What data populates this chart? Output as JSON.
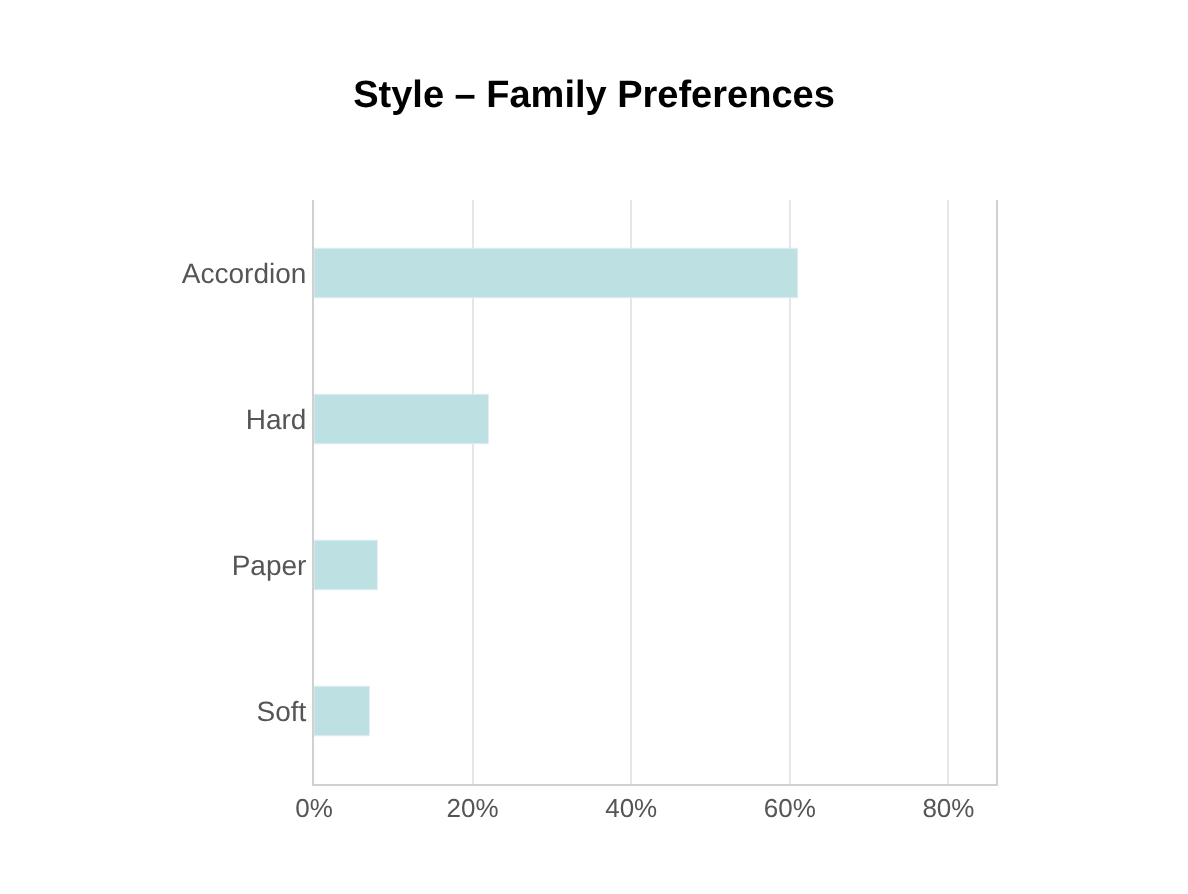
{
  "chart_data": {
    "type": "bar",
    "title": "Style – Family Preferences",
    "orientation": "horizontal",
    "categories": [
      "Accordion",
      "Hard",
      "Paper",
      "Soft"
    ],
    "values": [
      61,
      22,
      8,
      7
    ],
    "color": "#bde0e3",
    "xlim": [
      0,
      86
    ],
    "xticks": [
      {
        "value": 0,
        "label": "0%"
      },
      {
        "value": 20,
        "label": "20%"
      },
      {
        "value": 40,
        "label": "40%"
      },
      {
        "value": 60,
        "label": "60%"
      },
      {
        "value": 80,
        "label": "80%"
      }
    ],
    "grid": "x"
  }
}
